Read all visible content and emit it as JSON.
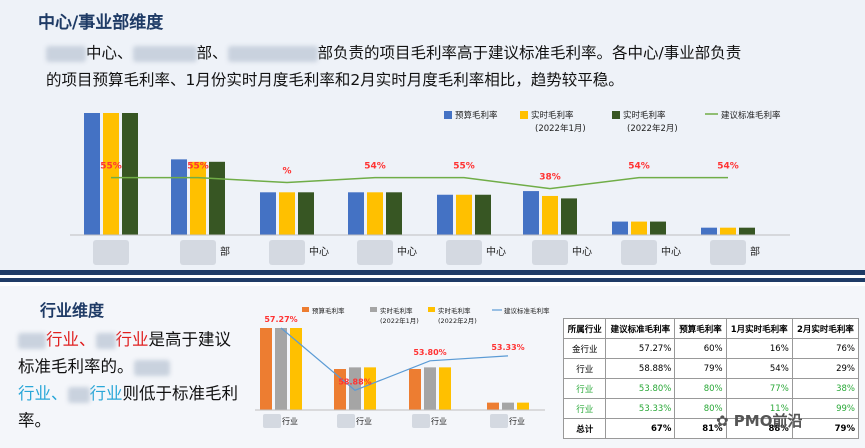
{
  "section1": {
    "title": "中心/事业部维度",
    "intro_parts": [
      "中心、",
      "部、",
      "部负责的项目毛利率高于建议标准毛利率。各中心/事业部负责",
      "的项目预算毛利率、1月份实时月度毛利率和2月实时月度毛利率相比，趋势较平稳。"
    ]
  },
  "section2": {
    "title": "行业维度",
    "text_a1": "行业、",
    "text_a2": "行业",
    "text_b": "是高于建议标准毛利率的。",
    "text_c1": "行业、",
    "text_c2": "行业",
    "text_d": "则低于标准毛利率。"
  },
  "watermark": "PMO前沿",
  "colors": {
    "budget": "#4472c4",
    "jan": "#ffc000",
    "feb": "#375623",
    "std": "#70ad47",
    "budget2": "#ed7d31",
    "jan2": "#a5a5a5",
    "feb2": "#ffc000",
    "std2": "#5b9bd5"
  },
  "chart_data": [
    {
      "type": "bar",
      "legend": [
        {
          "label": "预算毛利率"
        },
        {
          "label": "实时毛利率",
          "sub": "(2022年1月)"
        },
        {
          "label": "实时毛利率",
          "sub": "(2022年2月)"
        },
        {
          "label": "建议标准毛利率"
        }
      ],
      "categories": [
        "",
        "部",
        "中心",
        "中心",
        "中心",
        "中心",
        "中心",
        "部"
      ],
      "series": [
        {
          "name": "预算毛利率",
          "values": [
            100,
            62,
            35,
            35,
            33,
            36,
            11,
            6
          ]
        },
        {
          "name": "实时毛利率",
          "values": [
            100,
            60,
            35,
            35,
            33,
            32,
            11,
            6
          ]
        },
        {
          "name": "实时毛利率(2022年2月)",
          "values": [
            100,
            60,
            35,
            35,
            33,
            30,
            11,
            6
          ]
        },
        {
          "name": "建议标准毛利率",
          "values": [
            47,
            47,
            43,
            47,
            47,
            38,
            47,
            47
          ]
        }
      ],
      "line_labels": [
        "55%",
        "55%",
        "%",
        "54%",
        "55%",
        "38%",
        "54%",
        "54%"
      ]
    },
    {
      "type": "bar",
      "legend": [
        {
          "label": "预算毛利率"
        },
        {
          "label": "实时毛利率",
          "sub": "(2022年1月)"
        },
        {
          "label": "实时毛利率",
          "sub": "(2022年2月)"
        },
        {
          "label": "建议标准毛利率"
        }
      ],
      "categories": [
        "行业",
        "行业",
        "行业",
        "行业"
      ],
      "series": [
        {
          "name": "预算毛利率",
          "values": [
            100,
            50,
            50,
            9
          ]
        },
        {
          "name": "实时毛利率",
          "values": [
            100,
            52,
            52,
            9
          ]
        },
        {
          "name": "实时毛利率(2022年2月)",
          "values": [
            100,
            52,
            52,
            9
          ]
        },
        {
          "name": "建议标准毛利率",
          "values": [
            100,
            24,
            60,
            66
          ]
        }
      ],
      "line_labels": [
        "57.27%",
        "58.88%",
        "53.80%",
        "53.33%"
      ]
    }
  ],
  "table": {
    "headers": [
      "所属行业",
      "建议标准毛利率",
      "预算毛利率",
      "1月实时毛利率",
      "2月实时毛利率"
    ],
    "rows": [
      [
        "金行业",
        "57.27%",
        "60%",
        "16%",
        "76%"
      ],
      [
        "行业",
        "58.88%",
        "79%",
        "54%",
        "29%"
      ],
      [
        "行业",
        "53.80%",
        "80%",
        "77%",
        "38%"
      ],
      [
        "行业",
        "53.33%",
        "80%",
        "11%",
        "99%"
      ]
    ],
    "total": [
      "总计",
      "67%",
      "81%",
      "88%",
      "79%"
    ]
  }
}
